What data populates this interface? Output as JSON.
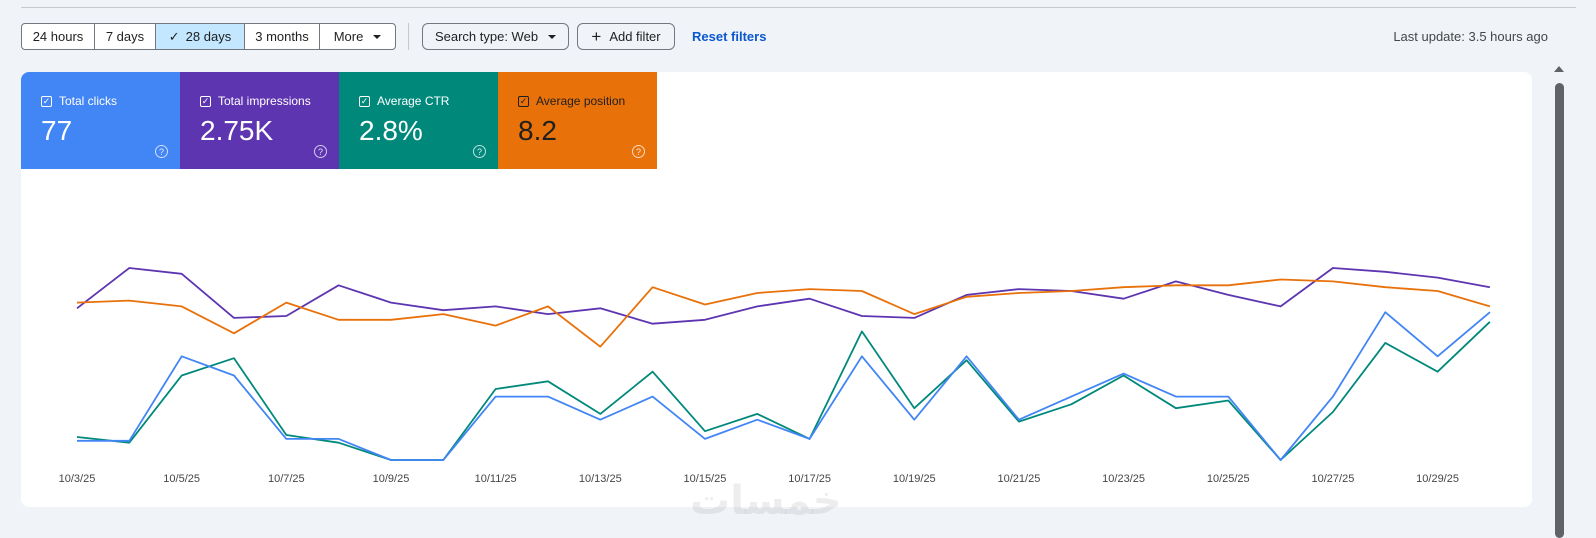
{
  "toolbar": {
    "ranges": [
      {
        "label": "24 hours",
        "active": false
      },
      {
        "label": "7 days",
        "active": false
      },
      {
        "label": "28 days",
        "active": true
      },
      {
        "label": "3 months",
        "active": false
      },
      {
        "label": "More",
        "active": false
      }
    ],
    "search_type": "Search type: Web",
    "add_filter": "Add filter",
    "reset": "Reset filters",
    "last_update": "Last update: 3.5 hours ago"
  },
  "metrics": [
    {
      "label": "Total clicks",
      "value": "77",
      "color": "#4285f4"
    },
    {
      "label": "Total impressions",
      "value": "2.75K",
      "color": "#5e35b1"
    },
    {
      "label": "Average CTR",
      "value": "2.8%",
      "color": "#00897b"
    },
    {
      "label": "Average position",
      "value": "8.2",
      "color": "#e8710a"
    }
  ],
  "watermark": "خمسات",
  "chart_data": {
    "type": "line",
    "x": [
      "10/3/25",
      "10/4/25",
      "10/5/25",
      "10/6/25",
      "10/7/25",
      "10/8/25",
      "10/9/25",
      "10/10/25",
      "10/11/25",
      "10/12/25",
      "10/13/25",
      "10/14/25",
      "10/15/25",
      "10/16/25",
      "10/17/25",
      "10/18/25",
      "10/19/25",
      "10/20/25",
      "10/21/25",
      "10/22/25",
      "10/23/25",
      "10/24/25",
      "10/25/25",
      "10/26/25",
      "10/27/25",
      "10/28/25",
      "10/29/25",
      "10/30/25"
    ],
    "x_tick_labels": [
      "10/3/25",
      "10/5/25",
      "10/7/25",
      "10/9/25",
      "10/11/25",
      "10/13/25",
      "10/15/25",
      "10/17/25",
      "10/19/25",
      "10/21/25",
      "10/23/25",
      "10/25/25",
      "10/27/25",
      "10/29/25"
    ],
    "series": [
      {
        "name": "Total impressions",
        "color": "#5e35b1",
        "values": [
          0.79,
          1.0,
          0.97,
          0.74,
          0.75,
          0.91,
          0.82,
          0.78,
          0.8,
          0.76,
          0.79,
          0.71,
          0.73,
          0.8,
          0.84,
          0.75,
          0.74,
          0.86,
          0.89,
          0.88,
          0.84,
          0.93,
          0.86,
          0.8,
          1.0,
          0.98,
          0.95,
          0.9
        ]
      },
      {
        "name": "Average position",
        "color": "#e8710a",
        "values": [
          0.82,
          0.83,
          0.8,
          0.66,
          0.82,
          0.73,
          0.73,
          0.76,
          0.7,
          0.8,
          0.59,
          0.9,
          0.81,
          0.87,
          0.89,
          0.88,
          0.76,
          0.85,
          0.87,
          0.88,
          0.9,
          0.91,
          0.91,
          0.94,
          0.93,
          0.9,
          0.88,
          0.8
        ]
      },
      {
        "name": "Average CTR",
        "color": "#00897b",
        "values": [
          0.12,
          0.09,
          0.44,
          0.53,
          0.13,
          0.09,
          0.0,
          0.0,
          0.37,
          0.41,
          0.24,
          0.46,
          0.15,
          0.24,
          0.11,
          0.67,
          0.27,
          0.52,
          0.2,
          0.29,
          0.44,
          0.27,
          0.31,
          0.0,
          0.25,
          0.61,
          0.46,
          0.72
        ]
      },
      {
        "name": "Total clicks",
        "color": "#4285f4",
        "values": [
          0.1,
          0.1,
          0.54,
          0.44,
          0.11,
          0.11,
          0.0,
          0.0,
          0.33,
          0.33,
          0.21,
          0.33,
          0.11,
          0.21,
          0.11,
          0.54,
          0.21,
          0.54,
          0.21,
          0.33,
          0.45,
          0.33,
          0.33,
          0.0,
          0.33,
          0.77,
          0.54,
          0.77
        ]
      }
    ],
    "legend": "metric tiles above chart",
    "grid": false
  }
}
